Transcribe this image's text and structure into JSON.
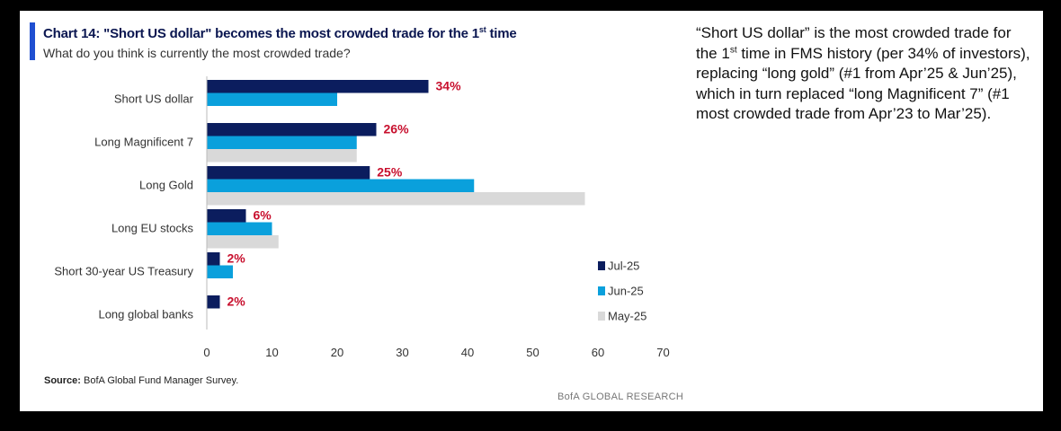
{
  "header": {
    "title_main": "Chart 14: \"Short US dollar\" becomes the most crowded trade for the 1",
    "title_sup": "st",
    "title_end": " time",
    "subtitle": "What do you think is currently the most crowded trade?"
  },
  "chart_data": {
    "type": "bar",
    "orientation": "horizontal",
    "categories": [
      "Short US dollar",
      "Long Magnificent 7",
      "Long Gold",
      "Long EU stocks",
      "Short 30-year US Treasury",
      "Long global banks"
    ],
    "series": [
      {
        "name": "Jul-25",
        "color": "#0b1d5e",
        "values": [
          34,
          26,
          25,
          6,
          2,
          2
        ]
      },
      {
        "name": "Jun-25",
        "color": "#0aa0dc",
        "values": [
          20,
          23,
          41,
          10,
          4,
          null
        ]
      },
      {
        "name": "May-25",
        "color": "#d9d9d9",
        "values": [
          null,
          23,
          58,
          11,
          null,
          null
        ]
      }
    ],
    "data_labels": [
      "34%",
      "26%",
      "25%",
      "6%",
      "2%",
      "2%"
    ],
    "data_label_color": "#c8102e",
    "xlim": [
      0,
      70
    ],
    "xticks": [
      0,
      10,
      20,
      30,
      40,
      50,
      60,
      70
    ],
    "legend_position": "bottom-right"
  },
  "source": {
    "label": "Source:",
    "text": " BofA Global Fund Manager Survey."
  },
  "footer": "BofA GLOBAL RESEARCH",
  "commentary": {
    "part1": "“Short US dollar” is the most crowded trade for the 1",
    "sup": "st",
    "part2": " time in FMS history (per 34% of investors), replacing “long gold” (#1 from Apr’25 & Jun’25), which in turn replaced “long Magnificent 7” (#1 most crowded trade from Apr’23 to Mar’25)."
  }
}
